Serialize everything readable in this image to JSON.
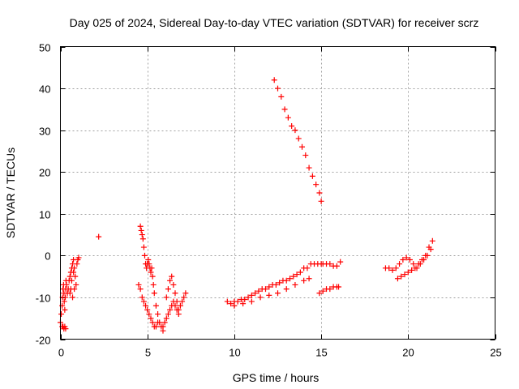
{
  "chart_data": {
    "type": "scatter",
    "title": "Day 025 of 2024, Sidereal Day-to-day VTEC variation (SDTVAR) for receiver scrz",
    "xlabel": "GPS time / hours",
    "ylabel": "SDTVAR / TECUs",
    "xlim": [
      0,
      25
    ],
    "ylim": [
      -20,
      50
    ],
    "xticks": [
      0,
      5,
      10,
      15,
      20,
      25
    ],
    "yticks": [
      -20,
      -10,
      0,
      10,
      20,
      30,
      40,
      50
    ],
    "xtick_labels": [
      "0",
      "5",
      "10",
      "15",
      "20",
      "25"
    ],
    "ytick_labels": [
      "-20",
      "-10",
      "0",
      "10",
      "20",
      "30",
      "40",
      "50"
    ],
    "grid": true,
    "marker": "+",
    "color": "#ff0000",
    "series": [
      {
        "name": "early-scatter-a",
        "x": [
          0.0,
          0.05,
          0.1,
          0.12,
          0.15,
          0.18,
          0.2,
          0.22,
          0.25,
          0.28,
          0.3,
          0.32,
          0.35,
          0.4,
          0.1,
          0.15,
          0.2,
          0.25,
          0.3
        ],
        "y": [
          -16,
          -14,
          -12,
          -10,
          -8,
          -7,
          -9,
          -11,
          -13,
          -10,
          -8,
          -6,
          -7,
          -9,
          -17,
          -17,
          -17.5,
          -17,
          -17.5
        ]
      },
      {
        "name": "early-scatter-b",
        "x": [
          0.45,
          0.5,
          0.55,
          0.6,
          0.65,
          0.7,
          0.75,
          0.8,
          0.85,
          0.9,
          0.55,
          0.6,
          0.7,
          0.8,
          0.95,
          1.0,
          1.05,
          0.65,
          0.75
        ],
        "y": [
          -8,
          -6,
          -5,
          -4,
          -3,
          -2,
          -1,
          -3,
          -5,
          -7,
          -9,
          -8,
          -10,
          -8,
          -2,
          -1,
          -0.5,
          -6,
          -4
        ]
      },
      {
        "name": "isolated-point",
        "x": [
          2.2
        ],
        "y": [
          4.5
        ]
      },
      {
        "name": "noon-cluster-a",
        "x": [
          4.6,
          4.65,
          4.7,
          4.75,
          4.8,
          4.85,
          4.9,
          4.95,
          5.0,
          5.05,
          5.1,
          5.15,
          5.2,
          5.25,
          5.3,
          5.35,
          5.4,
          5.5,
          5.6,
          5.7,
          5.8,
          5.9
        ],
        "y": [
          7,
          6,
          5,
          4,
          2,
          0,
          -2,
          -3,
          -2,
          -1,
          -2,
          -3,
          -4,
          -3,
          -5,
          -7,
          -9,
          -12,
          -14,
          -16,
          -17,
          -18
        ]
      },
      {
        "name": "noon-cluster-b",
        "x": [
          4.5,
          4.6,
          4.7,
          4.8,
          4.9,
          5.0,
          5.1,
          5.2,
          5.3,
          5.4,
          5.5,
          5.6
        ],
        "y": [
          -7,
          -8,
          -10,
          -11,
          -12,
          -13,
          -14,
          -15,
          -16,
          -17,
          -17,
          -16
        ]
      },
      {
        "name": "noon-cluster-c",
        "x": [
          5.9,
          6.0,
          6.1,
          6.2,
          6.3,
          6.4,
          6.5,
          6.6,
          6.7,
          6.8,
          6.9,
          7.0,
          7.1,
          7.2,
          6.1,
          6.2,
          6.3,
          6.4,
          6.5,
          6.6,
          6.7,
          6.8
        ],
        "y": [
          -17,
          -16,
          -15,
          -14,
          -13,
          -12,
          -11,
          -12,
          -13,
          -14,
          -12,
          -11,
          -10,
          -9,
          -10,
          -8,
          -6,
          -5,
          -7,
          -9,
          -11,
          -13
        ]
      },
      {
        "name": "rising-track",
        "x": [
          9.6,
          9.8,
          10.0,
          10.2,
          10.4,
          10.6,
          10.8,
          11.0,
          11.2,
          11.4,
          11.6,
          11.8,
          12.0,
          12.2,
          12.4,
          12.6,
          12.8,
          13.0,
          13.2,
          13.4,
          13.6,
          13.8,
          14.0,
          14.2,
          14.4,
          14.6,
          14.8,
          15.0
        ],
        "y": [
          -11,
          -11.5,
          -11,
          -11,
          -10.5,
          -10.5,
          -10,
          -9.5,
          -9,
          -8.5,
          -8,
          -8,
          -7.5,
          -7,
          -7,
          -6.5,
          -6,
          -6,
          -5.5,
          -5,
          -4.5,
          -4,
          -3,
          -3,
          -2,
          -2,
          -2,
          -2
        ]
      },
      {
        "name": "rising-track-lower",
        "x": [
          10.0,
          10.5,
          11.0,
          11.5,
          12.0,
          12.5,
          13.0,
          13.5,
          14.0,
          14.3
        ],
        "y": [
          -12,
          -11.5,
          -11,
          -10,
          -9.5,
          -9,
          -8,
          -7,
          -6,
          -5.5
        ]
      },
      {
        "name": "descending-track",
        "x": [
          12.3,
          12.5,
          12.7,
          12.9,
          13.1,
          13.3,
          13.5,
          13.7,
          13.9,
          14.1,
          14.3,
          14.5,
          14.7,
          14.9,
          15.0
        ],
        "y": [
          42,
          40,
          38,
          35,
          33,
          31,
          30,
          28,
          26,
          24,
          21,
          19,
          17,
          15,
          13
        ]
      },
      {
        "name": "late-short",
        "x": [
          14.9,
          15.1,
          15.3,
          15.5,
          15.7,
          15.9,
          16.0
        ],
        "y": [
          -9,
          -8.5,
          -8,
          -8,
          -7.5,
          -7.5,
          -7.5
        ]
      },
      {
        "name": "segment-16h",
        "x": [
          15.1,
          15.3,
          15.5,
          15.7,
          15.9,
          16.1
        ],
        "y": [
          -2,
          -2,
          -2,
          -2.5,
          -2.5,
          -1.5
        ]
      },
      {
        "name": "evening-loop-a",
        "x": [
          18.7,
          18.9,
          19.1,
          19.3,
          19.5,
          19.7,
          19.9,
          20.1,
          20.3,
          20.5,
          20.7,
          20.9,
          21.1,
          21.3
        ],
        "y": [
          -3,
          -3,
          -3.5,
          -3,
          -2,
          -1,
          -0.5,
          -1,
          -2,
          -3,
          -2,
          -1,
          0,
          1.5
        ]
      },
      {
        "name": "evening-loop-b",
        "x": [
          19.4,
          19.6,
          19.8,
          20.0,
          20.2,
          20.4,
          20.6,
          20.8,
          21.0,
          21.2,
          21.4
        ],
        "y": [
          -5.5,
          -5,
          -4.5,
          -4,
          -3.5,
          -3,
          -2,
          -1,
          0,
          2,
          3.5
        ]
      }
    ]
  }
}
